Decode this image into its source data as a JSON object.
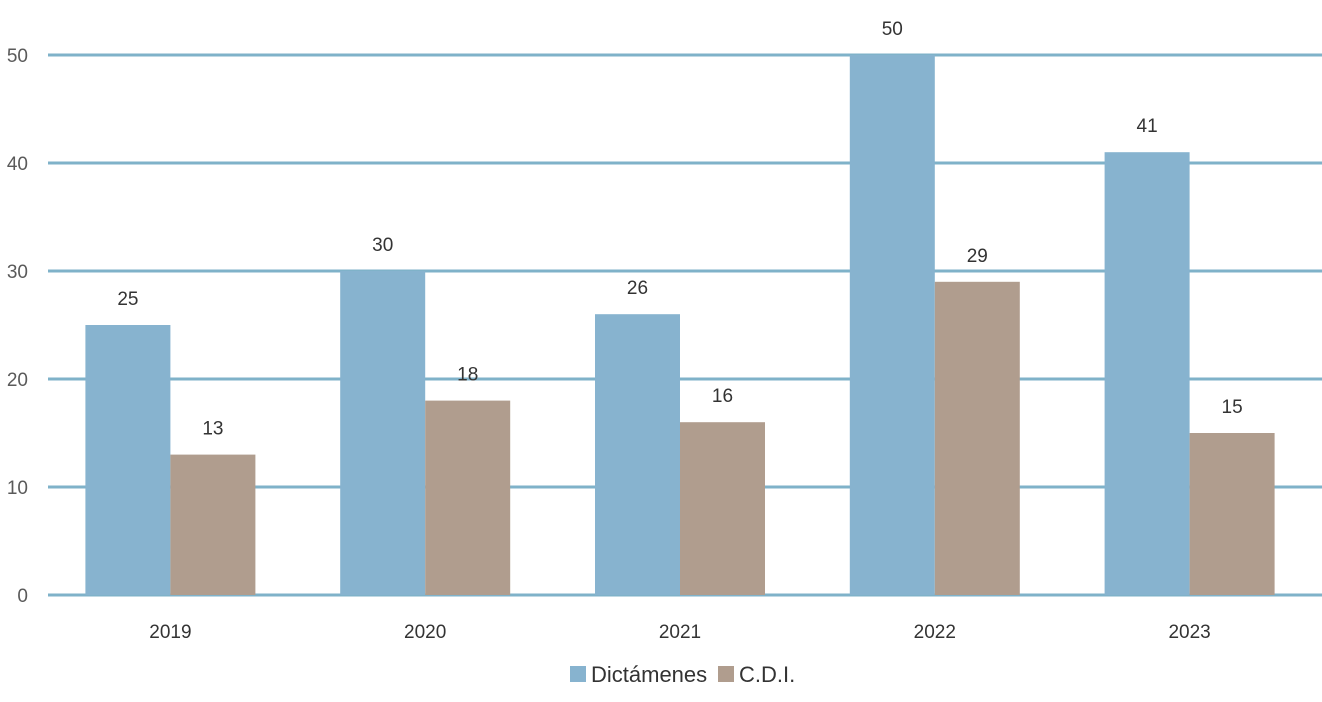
{
  "chart_data": {
    "type": "bar",
    "categories": [
      "2019",
      "2020",
      "2021",
      "2022",
      "2023"
    ],
    "series": [
      {
        "name": "Dictámenes",
        "values": [
          25,
          30,
          26,
          50,
          41
        ],
        "color": "#87b3cf"
      },
      {
        "name": "C.D.I.",
        "values": [
          13,
          18,
          16,
          29,
          15
        ],
        "color": "#b09d8e"
      }
    ],
    "ylim": [
      0,
      50
    ],
    "yticks": [
      "0",
      "10",
      "20",
      "30",
      "40",
      "50"
    ],
    "grid": true,
    "gridline_color": "#7fb2c9",
    "legend_position": "bottom-center",
    "data_labels": true
  }
}
